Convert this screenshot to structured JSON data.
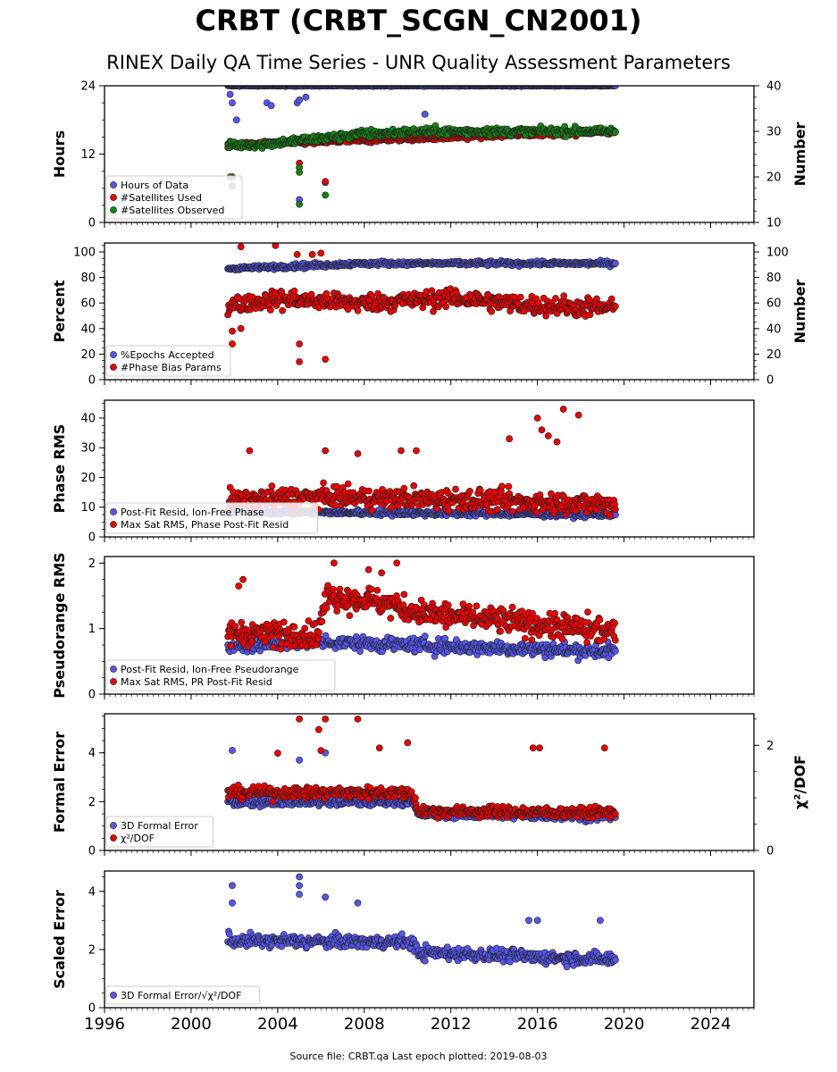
{
  "title": "CRBT (CRBT_SCGN_CN2001)",
  "subtitle": "RINEX Daily QA Time Series - UNR Quality Assessment Parameters",
  "footer": "Source file: CRBT.qa Last epoch plotted: 2019-08-03",
  "colors": {
    "blue": "#5555ee",
    "red": "#ee0000",
    "green": "#118811",
    "edge": "#222222"
  },
  "chart_data": [
    {
      "type": "scatter",
      "ylabel": "Hours",
      "ylabel_right": "Number",
      "ylim": [
        0,
        24
      ],
      "yticks": [
        0,
        12,
        24
      ],
      "yticks_labels": [
        "0",
        "12",
        "24"
      ],
      "ylim_right": [
        10,
        40
      ],
      "yticks_right": [
        10,
        20,
        30,
        40
      ],
      "yticks_right_labels": [
        "10",
        "20",
        "30",
        "40"
      ],
      "legend_position": "lower-left",
      "series": [
        {
          "name": "Hours of Data",
          "color": "blue",
          "axis": "left",
          "trend": [
            [
              2001.7,
              24
            ],
            [
              2019.6,
              24
            ]
          ],
          "spread": 0.1,
          "outliers": [
            [
              2001.8,
              22.5
            ],
            [
              2001.9,
              21
            ],
            [
              2002.1,
              18
            ],
            [
              2003.5,
              21
            ],
            [
              2003.7,
              20.5
            ],
            [
              2004.9,
              21
            ],
            [
              2005.0,
              21.5
            ],
            [
              2005.3,
              22
            ],
            [
              2010.8,
              19
            ],
            [
              2005.0,
              4
            ],
            [
              2006.2,
              7
            ]
          ]
        },
        {
          "name": "#Satellites Used",
          "color": "red",
          "axis": "right",
          "trend": [
            [
              2001.7,
              27
            ],
            [
              2019.6,
              30
            ]
          ],
          "spread": 0.6,
          "outliers": [
            [
              2001.9,
              20
            ],
            [
              2005.0,
              23
            ],
            [
              2006.2,
              19
            ]
          ]
        },
        {
          "name": "#Satellites Observed",
          "color": "green",
          "axis": "right",
          "trend": [
            [
              2001.7,
              27
            ],
            [
              2003.0,
              27
            ],
            [
              2005.0,
              28
            ],
            [
              2008.0,
              29.5
            ],
            [
              2011.0,
              30
            ],
            [
              2019.6,
              30
            ]
          ],
          "spread": 0.9,
          "outliers": [
            [
              2001.8,
              20
            ],
            [
              2001.9,
              18
            ],
            [
              2005.0,
              22
            ],
            [
              2005.0,
              21
            ],
            [
              2005.0,
              14
            ],
            [
              2006.2,
              16
            ]
          ]
        }
      ]
    },
    {
      "type": "scatter",
      "ylabel": "Percent",
      "ylabel_right": "Number",
      "ylim": [
        0,
        107
      ],
      "yticks": [
        0,
        20,
        40,
        60,
        80,
        100
      ],
      "yticks_labels": [
        "0",
        "20",
        "40",
        "60",
        "80",
        "100"
      ],
      "ylim_right": [
        0,
        107
      ],
      "yticks_right": [
        0,
        20,
        40,
        60,
        80,
        100
      ],
      "yticks_right_labels": [
        "0",
        "20",
        "40",
        "60",
        "80",
        "100"
      ],
      "legend_position": "lower-left",
      "series": [
        {
          "name": "%Epochs Accepted",
          "color": "blue",
          "axis": "left",
          "trend": [
            [
              2001.7,
              87
            ],
            [
              2005.0,
              89
            ],
            [
              2008.0,
              91
            ],
            [
              2019.6,
              91
            ]
          ],
          "spread": 2,
          "outliers": []
        },
        {
          "name": "#Phase Bias Params",
          "color": "red",
          "axis": "right",
          "trend": [
            [
              2001.7,
              58
            ],
            [
              2004.0,
              63
            ],
            [
              2008.0,
              60
            ],
            [
              2012.0,
              64
            ],
            [
              2016.0,
              58
            ],
            [
              2019.6,
              56
            ]
          ],
          "spread": 8,
          "outliers": [
            [
              2002.3,
              104
            ],
            [
              2003.9,
              105
            ],
            [
              2004.9,
              98
            ],
            [
              2005.6,
              98
            ],
            [
              2006.0,
              99
            ],
            [
              2001.9,
              38
            ],
            [
              2002.3,
              40
            ],
            [
              2001.9,
              28
            ],
            [
              2005.0,
              28
            ],
            [
              2005.0,
              14
            ],
            [
              2006.2,
              16
            ]
          ]
        }
      ]
    },
    {
      "type": "scatter",
      "ylabel": "Phase RMS",
      "ylim": [
        0,
        46
      ],
      "yticks": [
        0,
        10,
        20,
        30,
        40
      ],
      "yticks_labels": [
        "0",
        "10",
        "20",
        "30",
        "40"
      ],
      "legend_position": "lower-left",
      "series": [
        {
          "name": "Post-Fit Resid, Ion-Free Phase",
          "color": "blue",
          "axis": "left",
          "trend": [
            [
              2001.7,
              8.5
            ],
            [
              2019.6,
              7.5
            ]
          ],
          "spread": 1,
          "outliers": []
        },
        {
          "name": "Max Sat RMS, Phase Post-Fit Resid",
          "color": "red",
          "axis": "left",
          "trend": [
            [
              2001.7,
              12
            ],
            [
              2006.0,
              13.5
            ],
            [
              2012.0,
              12.5
            ],
            [
              2019.6,
              11
            ]
          ],
          "spread": 4,
          "outliers": [
            [
              2002.7,
              29
            ],
            [
              2006.2,
              29
            ],
            [
              2007.7,
              28
            ],
            [
              2009.7,
              29
            ],
            [
              2010.4,
              29
            ],
            [
              2014.7,
              33
            ],
            [
              2016.0,
              40
            ],
            [
              2016.2,
              36
            ],
            [
              2016.5,
              34
            ],
            [
              2017.2,
              43
            ],
            [
              2017.9,
              41
            ],
            [
              2016.9,
              32
            ]
          ]
        }
      ]
    },
    {
      "type": "scatter",
      "ylabel": "Pseudorange RMS",
      "ylim": [
        0,
        2.1
      ],
      "yticks": [
        0,
        1,
        2
      ],
      "yticks_labels": [
        "0",
        "1",
        "2"
      ],
      "legend_position": "lower-left",
      "series": [
        {
          "name": "Post-Fit Resid, Ion-Free Pseudorange",
          "color": "blue",
          "axis": "left",
          "trend": [
            [
              2001.7,
              0.72
            ],
            [
              2006.0,
              0.8
            ],
            [
              2010.0,
              0.75
            ],
            [
              2019.6,
              0.65
            ]
          ],
          "spread": 0.12,
          "outliers": []
        },
        {
          "name": "Max Sat RMS, PR Post-Fit Resid",
          "color": "red",
          "axis": "left",
          "trend": [
            [
              2001.7,
              0.95
            ],
            [
              2005.8,
              0.9
            ],
            [
              2006.3,
              1.5
            ],
            [
              2009.0,
              1.4
            ],
            [
              2010.3,
              1.25
            ],
            [
              2019.6,
              0.95
            ]
          ],
          "spread": 0.22,
          "outliers": [
            [
              2002.2,
              1.65
            ],
            [
              2002.4,
              1.75
            ],
            [
              2006.6,
              2.0
            ],
            [
              2008.2,
              1.9
            ],
            [
              2009.5,
              2.0
            ],
            [
              2008.8,
              1.85
            ]
          ]
        }
      ]
    },
    {
      "type": "scatter",
      "ylabel": "Formal Error",
      "ylabel_right": "χ²/DOF",
      "ylim": [
        0,
        5.6
      ],
      "yticks": [
        0,
        2,
        4
      ],
      "yticks_labels": [
        "0",
        "2",
        "4"
      ],
      "ylim_right": [
        0,
        2.6
      ],
      "yticks_right": [
        0,
        2
      ],
      "yticks_right_labels": [
        "0",
        "2"
      ],
      "legend_position": "lower-left",
      "series": [
        {
          "name": "3D Formal Error",
          "color": "blue",
          "axis": "left",
          "trend": [
            [
              2001.7,
              2.0
            ],
            [
              2010.2,
              2.0
            ],
            [
              2010.5,
              1.5
            ],
            [
              2019.6,
              1.4
            ]
          ],
          "spread": 0.2,
          "outliers": [
            [
              2001.9,
              4.1
            ],
            [
              2005.0,
              3.7
            ],
            [
              2006.2,
              4.0
            ]
          ]
        },
        {
          "name": "χ²/DOF",
          "color": "red",
          "axis": "right",
          "trend": [
            [
              2001.7,
              1.1
            ],
            [
              2010.2,
              1.1
            ],
            [
              2010.5,
              0.75
            ],
            [
              2019.6,
              0.72
            ]
          ],
          "spread": 0.12,
          "outliers": [
            [
              2005.0,
              2.5
            ],
            [
              2005.9,
              2.3
            ],
            [
              2006.2,
              2.5
            ],
            [
              2007.7,
              2.5
            ],
            [
              2006.0,
              1.9
            ],
            [
              2008.7,
              1.95
            ],
            [
              2010.0,
              2.05
            ],
            [
              2015.8,
              1.95
            ],
            [
              2016.1,
              1.95
            ],
            [
              2019.1,
              1.95
            ],
            [
              2004.0,
              1.85
            ]
          ]
        }
      ]
    },
    {
      "type": "scatter",
      "ylabel": "Scaled Error",
      "xlabel": "",
      "ylim": [
        0,
        4.7
      ],
      "yticks": [
        0,
        2,
        4
      ],
      "yticks_labels": [
        "0",
        "2",
        "4"
      ],
      "xlim": [
        1996,
        2026
      ],
      "xticks": [
        1996,
        2000,
        2004,
        2008,
        2012,
        2016,
        2020,
        2024
      ],
      "xticks_labels": [
        "1996",
        "2000",
        "2004",
        "2008",
        "2012",
        "2016",
        "2020",
        "2024"
      ],
      "legend_position": "lower-left",
      "series": [
        {
          "name": "3D Formal Error/√χ²/DOF",
          "color": "blue",
          "axis": "left",
          "trend": [
            [
              2001.7,
              2.3
            ],
            [
              2010.2,
              2.25
            ],
            [
              2010.5,
              1.9
            ],
            [
              2019.6,
              1.65
            ]
          ],
          "spread": 0.25,
          "outliers": [
            [
              2001.9,
              4.2
            ],
            [
              2001.9,
              3.6
            ],
            [
              2005.0,
              4.5
            ],
            [
              2005.0,
              4.2
            ],
            [
              2005.0,
              3.9
            ],
            [
              2006.2,
              3.8
            ],
            [
              2007.7,
              3.6
            ],
            [
              2015.6,
              3.0
            ],
            [
              2016.0,
              3.0
            ],
            [
              2018.9,
              3.0
            ]
          ]
        }
      ]
    }
  ]
}
